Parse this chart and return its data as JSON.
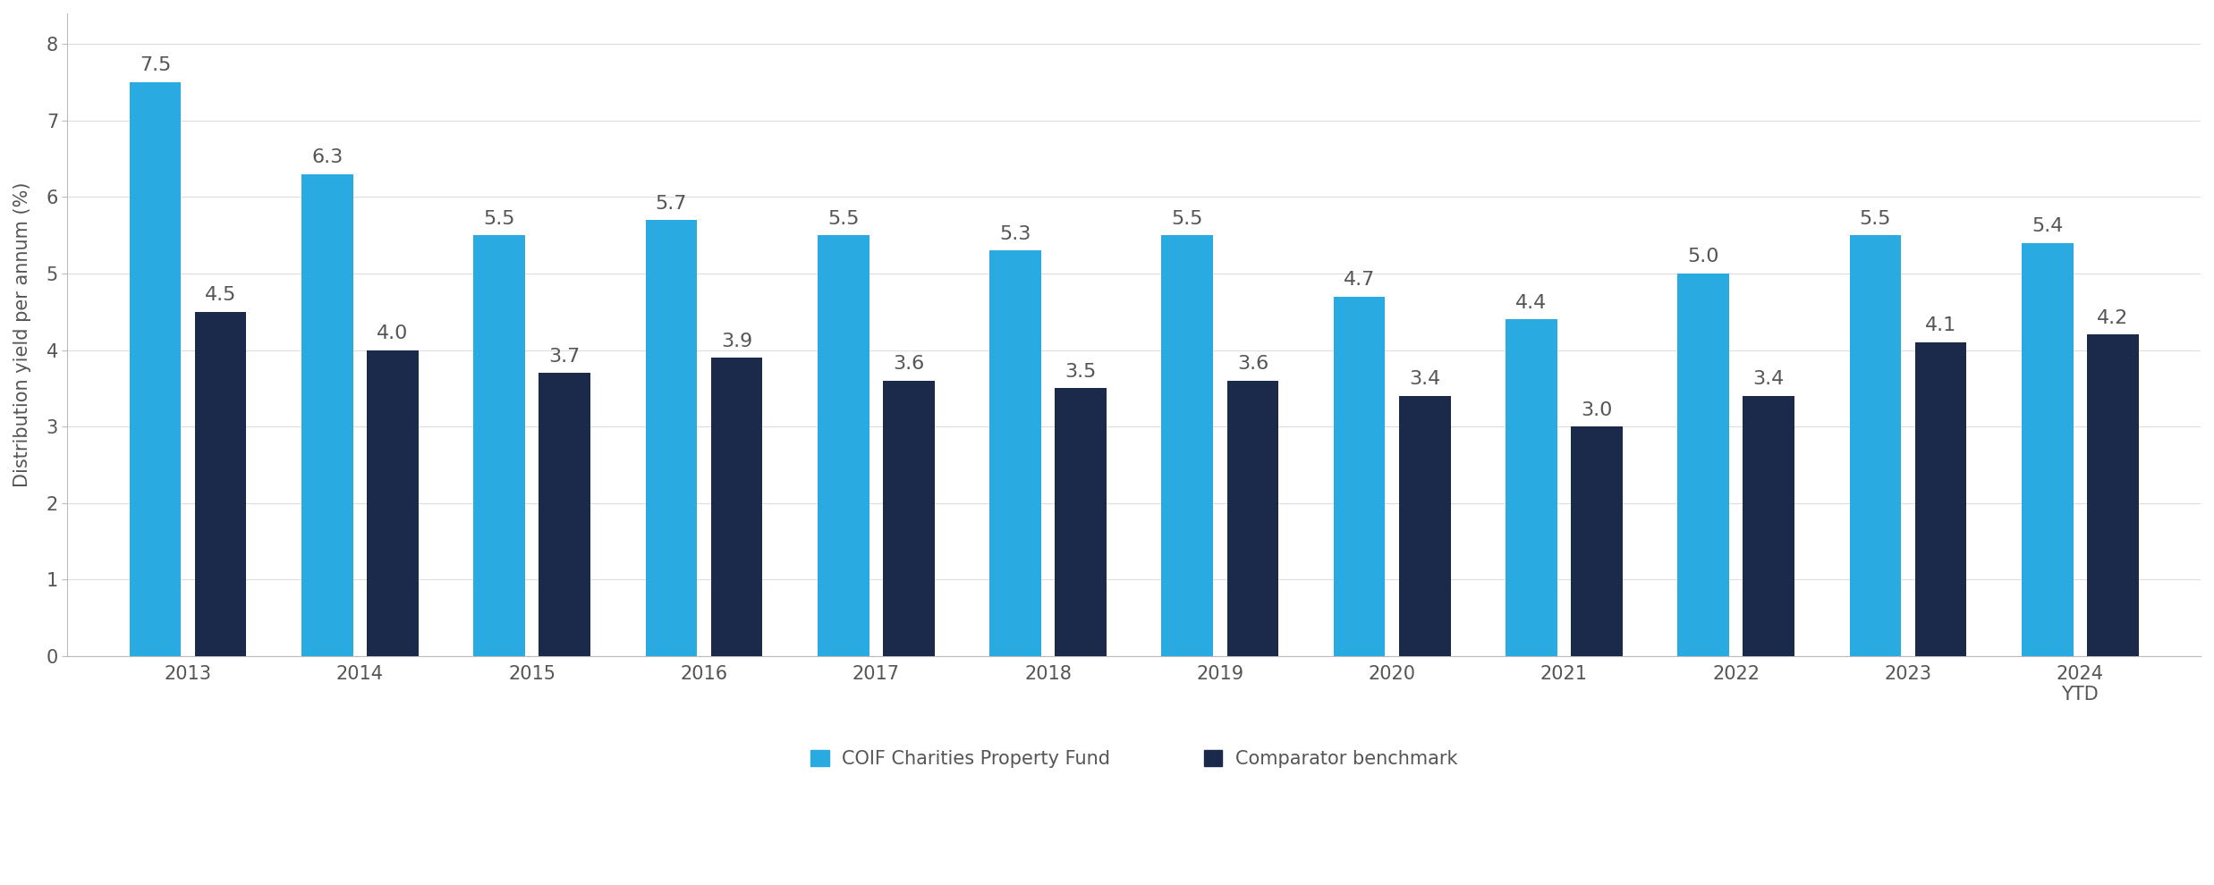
{
  "years": [
    "2013",
    "2014",
    "2015",
    "2016",
    "2017",
    "2018",
    "2019",
    "2020",
    "2021",
    "2022",
    "2023",
    "2024\nYTD"
  ],
  "coif_values": [
    7.5,
    6.3,
    5.5,
    5.7,
    5.5,
    5.3,
    5.5,
    4.7,
    4.4,
    5.0,
    5.5,
    5.4
  ],
  "benchmark_values": [
    4.5,
    4.0,
    3.7,
    3.9,
    3.6,
    3.5,
    3.6,
    3.4,
    3.0,
    3.4,
    4.1,
    4.2
  ],
  "coif_color": "#29ABE2",
  "benchmark_color": "#1B2A4A",
  "ylabel": "Distribution yield per annum (%)",
  "ylim": [
    0,
    8.4
  ],
  "yticks": [
    0,
    1,
    2,
    3,
    4,
    5,
    6,
    7,
    8
  ],
  "legend_coif": "COIF Charities Property Fund",
  "legend_benchmark": "Comparator benchmark",
  "background_color": "#ffffff",
  "label_fontsize": 16,
  "axis_label_fontsize": 15,
  "tick_fontsize": 15,
  "legend_fontsize": 15,
  "bar_width": 0.3,
  "bar_gap": 0.08,
  "label_color": "#555555"
}
